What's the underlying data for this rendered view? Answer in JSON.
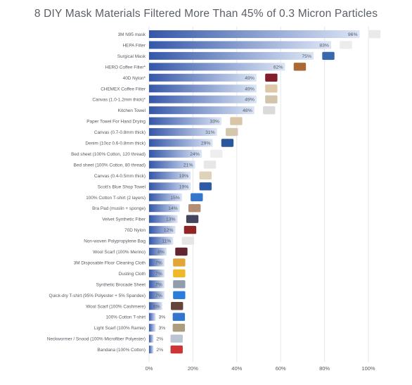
{
  "chart_data": {
    "type": "bar",
    "orientation": "horizontal",
    "title": "8 DIY Mask Materials Filtered More Than 45% of 0.3 Micron Particles",
    "xlim": [
      0,
      100
    ],
    "x_ticks": [
      "0%",
      "20%",
      "40%",
      "60%",
      "80%",
      "100%"
    ],
    "grid": true,
    "categories": [
      "3M N95 mask",
      "HEPA Filter",
      "Surgical Mask",
      "HERO Coffee Filter*",
      "40D Nylon*",
      "CHEMEX Coffee Filter",
      "Canvas (1.0-1.2mm thick)*",
      "Kitchen Towel",
      "Paper Towel For Hand Drying",
      "Canvas (0.7-0.8mm thick)",
      "Denim (10oz 0.6-0.8mm thick)",
      "Bed sheet (100% Cotton, 120 thread)",
      "Bed sheet (100% Cotton, 80 thread)",
      "Canvas (0.4-0.5mm thick)",
      "Scott's Blue Shop Towel",
      "100% Cotton T-shirt (2 layers)",
      "Bra Pad (muslin + sponge)",
      "Velvet Synthetic Fiber",
      "70D Nylon",
      "Non-woven Polypropylene Bag",
      "Wool Scarf (100% Merino)",
      "3M Disposable Floor Cleaning Cloth",
      "Dusting Cloth",
      "Synthetic Brocade Sheet",
      "Quick-dry T-shirt (95% Polyester + 5% Spandex)",
      "Wool Scarf (100% Cashmere)",
      "100% Cotton T-shirt",
      "Light Scarf (100% Ramie)",
      "Neckwormer / Snood (100% Microfiber Polyester)",
      "Bandana (100% Cotton)"
    ],
    "values": [
      96,
      83,
      75,
      62,
      49,
      49,
      49,
      48,
      33,
      31,
      29,
      24,
      21,
      19,
      19,
      15,
      14,
      13,
      12,
      11,
      8,
      7,
      7,
      7,
      7,
      6,
      3,
      3,
      2,
      2
    ],
    "value_labels": [
      "96%",
      "83%",
      "75%",
      "62%",
      "49%",
      "49%",
      "49%",
      "48%",
      "33%",
      "31%",
      "29%",
      "24%",
      "21%",
      "19%",
      "19%",
      "15%",
      "14%",
      "13%",
      "12%",
      "11%",
      "8%",
      "7%",
      "7%",
      "7%",
      "7%",
      "6%",
      "3%",
      "3%",
      "2%",
      "2%"
    ],
    "colors": {
      "bar_dark": "#3557a8",
      "bar_light": "#dce5f5",
      "grid": "#e4e6ea",
      "text": "#545a62"
    },
    "thumbnails": [
      {
        "row": 0,
        "color": "#e8e9ec",
        "icon": "n95-mask-icon"
      },
      {
        "row": 1,
        "color": "#ececec",
        "icon": "hepa-filter-icon"
      },
      {
        "row": 2,
        "color": "#2e62a8",
        "icon": "surgical-mask-icon"
      },
      {
        "row": 3,
        "color": "#a8622a",
        "icon": "coffee-filter-icon"
      },
      {
        "row": 4,
        "color": "#7a1420",
        "icon": "nylon-icon"
      },
      {
        "row": 5,
        "color": "#dcc7a6",
        "icon": "chemex-filter-icon"
      },
      {
        "row": 6,
        "color": "#cfc2a8",
        "icon": "canvas-icon"
      },
      {
        "row": 7,
        "color": "#d9d9d9",
        "icon": "kitchen-towel-icon"
      },
      {
        "row": 8,
        "color": "#d8c3a3",
        "icon": "paper-towel-icon"
      },
      {
        "row": 9,
        "color": "#d3c4aa",
        "icon": "canvas-icon"
      },
      {
        "row": 10,
        "color": "#1f4f96",
        "icon": "denim-icon"
      },
      {
        "row": 11,
        "color": "#eeeeee",
        "icon": "bed-sheet-icon"
      },
      {
        "row": 12,
        "color": "#e6e6e6",
        "icon": "bed-sheet-icon"
      },
      {
        "row": 13,
        "color": "#ddd0b6",
        "icon": "canvas-icon"
      },
      {
        "row": 14,
        "color": "#2352a3",
        "icon": "shop-towel-icon"
      },
      {
        "row": 15,
        "color": "#2a6fc9",
        "icon": "t-shirt-icon"
      },
      {
        "row": 16,
        "color": "#b08a6e",
        "icon": "bra-pad-icon"
      },
      {
        "row": 17,
        "color": "#3a3a55",
        "icon": "velvet-icon"
      },
      {
        "row": 18,
        "color": "#8a1a1a",
        "icon": "nylon-icon"
      },
      {
        "row": 19,
        "color": "#e4e4e4",
        "icon": "polypropylene-bag-icon"
      },
      {
        "row": 20,
        "color": "#5a1a24",
        "icon": "wool-scarf-icon"
      },
      {
        "row": 21,
        "color": "#e2a12e",
        "icon": "cleaning-cloth-icon"
      },
      {
        "row": 22,
        "color": "#f0b41e",
        "icon": "dusting-cloth-icon"
      },
      {
        "row": 23,
        "color": "#8c98a6",
        "icon": "brocade-icon"
      },
      {
        "row": 24,
        "color": "#1f78d8",
        "icon": "t-shirt-icon"
      },
      {
        "row": 25,
        "color": "#5c3b2e",
        "icon": "cashmere-scarf-icon"
      },
      {
        "row": 26,
        "color": "#2a6fc9",
        "icon": "t-shirt-icon"
      },
      {
        "row": 27,
        "color": "#a89878",
        "icon": "ramie-scarf-icon"
      },
      {
        "row": 28,
        "color": "#b8c4d0",
        "icon": "snood-icon"
      },
      {
        "row": 29,
        "color": "#cc2a2a",
        "icon": "bandana-icon"
      }
    ]
  }
}
